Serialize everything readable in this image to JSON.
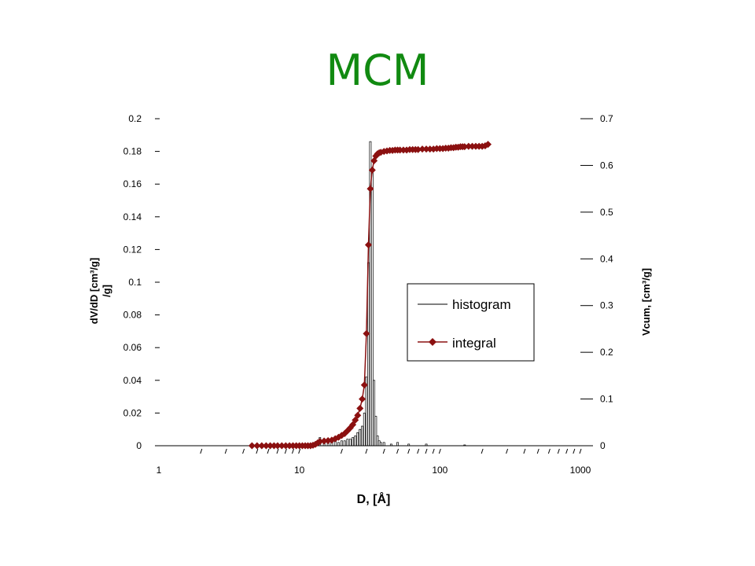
{
  "chart_data": {
    "type": "bar+line",
    "title": "MCM",
    "xlabel": "D, [Å]",
    "ylabel_left": "dV/dD [cm³/g] /g]",
    "ylabel_left_lines": [
      "dV/dD [cm³/g]",
      "/g]"
    ],
    "ylabel_right": "Vcum, [cm³/g]",
    "x_scale": "log",
    "xlim": [
      1,
      1000
    ],
    "ylim_left": [
      0,
      0.2
    ],
    "ylim_right": [
      0,
      0.7
    ],
    "x_ticks": [
      "1",
      "10",
      "100",
      "1000"
    ],
    "y_left_ticks": [
      "0",
      "0.02",
      "0.04",
      "0.06",
      "0.08",
      "0.1",
      "0.12",
      "0.14",
      "0.16",
      "0.18",
      "0.2"
    ],
    "y_right_ticks": [
      "0",
      "0.1",
      "0.2",
      "0.3",
      "0.4",
      "0.5",
      "0.6",
      "0.7"
    ],
    "legend_position": "center-right",
    "grid": false,
    "series": [
      {
        "name": "histogram",
        "kind": "bar",
        "axis": "left",
        "color": "#000000",
        "x": [
          14,
          15,
          16,
          17,
          18,
          19,
          20,
          21,
          22,
          23,
          24,
          25,
          26,
          27,
          28,
          29,
          30,
          31,
          32,
          33,
          34,
          35,
          36,
          37,
          38,
          40,
          45,
          50,
          60,
          80,
          150
        ],
        "values": [
          0.005,
          0.004,
          0.003,
          0.003,
          0.003,
          0.002,
          0.003,
          0.003,
          0.004,
          0.004,
          0.005,
          0.006,
          0.008,
          0.01,
          0.012,
          0.02,
          0.042,
          0.112,
          0.186,
          0.17,
          0.04,
          0.018,
          0.006,
          0.003,
          0.002,
          0.002,
          0.001,
          0.002,
          0.001,
          0.001,
          0.0005
        ]
      },
      {
        "name": "integral",
        "kind": "line-markers",
        "axis": "right",
        "color": "#8b1010",
        "x": [
          4.6,
          5,
          5.4,
          5.8,
          6.2,
          6.6,
          7,
          7.5,
          8,
          8.5,
          9,
          9.5,
          10,
          10.5,
          11,
          11.5,
          12,
          12.5,
          13,
          13.5,
          14,
          15,
          16,
          17,
          18,
          19,
          20,
          21,
          22,
          23,
          24,
          25,
          26,
          27,
          28,
          29,
          30,
          31,
          32,
          33,
          34,
          35,
          36,
          37,
          38,
          40,
          42,
          44,
          46,
          48,
          50,
          52,
          55,
          58,
          61,
          64,
          67,
          70,
          75,
          80,
          85,
          90,
          95,
          100,
          105,
          110,
          115,
          120,
          125,
          130,
          135,
          140,
          145,
          150,
          160,
          170,
          180,
          190,
          200,
          210,
          220
        ],
        "values": [
          0,
          0,
          0,
          0,
          0,
          0,
          0,
          0,
          0,
          0,
          0,
          0,
          0,
          0,
          0,
          0,
          0,
          0.001,
          0.003,
          0.006,
          0.009,
          0.01,
          0.011,
          0.012,
          0.015,
          0.018,
          0.022,
          0.026,
          0.032,
          0.038,
          0.045,
          0.055,
          0.065,
          0.08,
          0.1,
          0.13,
          0.24,
          0.43,
          0.55,
          0.59,
          0.61,
          0.62,
          0.625,
          0.627,
          0.628,
          0.63,
          0.631,
          0.632,
          0.632,
          0.633,
          0.633,
          0.633,
          0.633,
          0.633,
          0.634,
          0.634,
          0.634,
          0.634,
          0.635,
          0.635,
          0.635,
          0.635,
          0.636,
          0.636,
          0.636,
          0.637,
          0.637,
          0.638,
          0.638,
          0.639,
          0.639,
          0.64,
          0.64,
          0.64,
          0.641,
          0.641,
          0.641,
          0.641,
          0.641,
          0.642,
          0.645
        ]
      }
    ]
  },
  "legend": {
    "histogram_label": "histogram",
    "integral_label": "integral"
  }
}
